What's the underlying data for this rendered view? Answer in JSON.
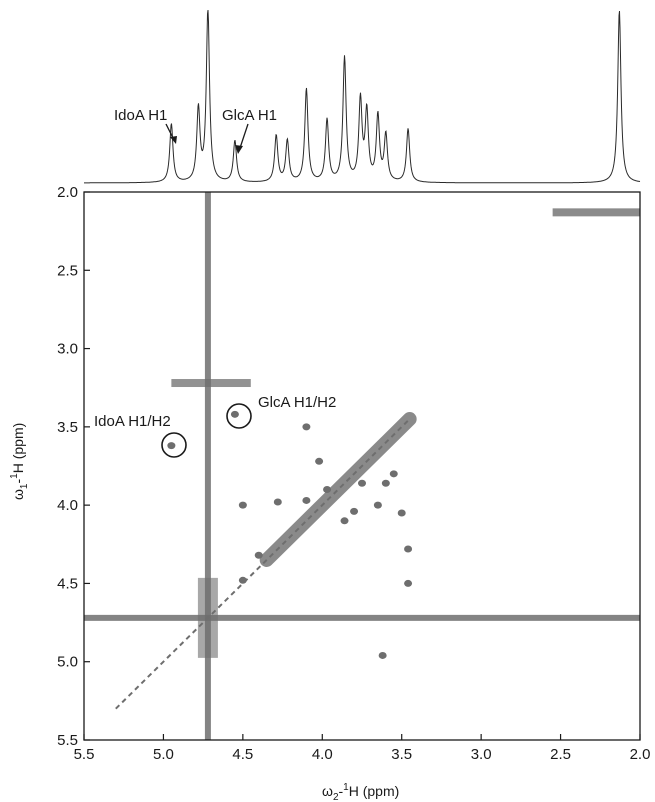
{
  "chart_data": {
    "type": "scatter",
    "title": "",
    "x_axis": {
      "label_prefix": "ω",
      "label_sub": "2",
      "label_mid": "-",
      "label_sup": "1",
      "label_suffix": "H (ppm)",
      "range": [
        5.5,
        2.0
      ],
      "ticks": [
        "5.5",
        "5.0",
        "4.5",
        "4.0",
        "3.5",
        "3.0",
        "2.5",
        "2.0"
      ]
    },
    "y_axis": {
      "label_prefix": "ω",
      "label_sub": "1",
      "label_mid": "-",
      "label_sup": "1",
      "label_suffix": "H (ppm)",
      "range": [
        2.0,
        5.5
      ],
      "ticks": [
        "2.0",
        "2.5",
        "3.0",
        "3.5",
        "4.0",
        "4.5",
        "5.0",
        "5.5"
      ]
    },
    "grid": false,
    "spectrum_1d": {
      "peaks": [
        {
          "ppm": 4.95,
          "height": 0.34
        },
        {
          "ppm": 4.78,
          "height": 0.42
        },
        {
          "ppm": 4.72,
          "height": 1.0
        },
        {
          "ppm": 4.55,
          "height": 0.24
        },
        {
          "ppm": 4.29,
          "height": 0.27
        },
        {
          "ppm": 4.22,
          "height": 0.24
        },
        {
          "ppm": 4.1,
          "height": 0.54
        },
        {
          "ppm": 3.97,
          "height": 0.36
        },
        {
          "ppm": 3.86,
          "height": 0.72
        },
        {
          "ppm": 3.76,
          "height": 0.47
        },
        {
          "ppm": 3.72,
          "height": 0.4
        },
        {
          "ppm": 3.65,
          "height": 0.38
        },
        {
          "ppm": 3.6,
          "height": 0.27
        },
        {
          "ppm": 3.46,
          "height": 0.31
        },
        {
          "ppm": 2.13,
          "height": 1.0
        }
      ]
    },
    "cross_peaks": [
      {
        "x": 4.95,
        "y": 3.62
      },
      {
        "x": 4.55,
        "y": 3.42
      },
      {
        "x": 4.5,
        "y": 4.0
      },
      {
        "x": 4.5,
        "y": 4.48
      },
      {
        "x": 4.28,
        "y": 3.98
      },
      {
        "x": 4.1,
        "y": 3.5
      },
      {
        "x": 4.02,
        "y": 3.72
      },
      {
        "x": 3.97,
        "y": 3.9
      },
      {
        "x": 3.86,
        "y": 4.1
      },
      {
        "x": 3.8,
        "y": 4.04
      },
      {
        "x": 3.75,
        "y": 3.86
      },
      {
        "x": 3.65,
        "y": 4.0
      },
      {
        "x": 3.6,
        "y": 3.86
      },
      {
        "x": 3.55,
        "y": 3.8
      },
      {
        "x": 3.5,
        "y": 4.05
      },
      {
        "x": 3.46,
        "y": 4.28
      },
      {
        "x": 3.46,
        "y": 4.5
      },
      {
        "x": 3.62,
        "y": 4.96
      },
      {
        "x": 4.4,
        "y": 4.32
      },
      {
        "x": 4.1,
        "y": 3.97
      }
    ],
    "solvent_ppm": 4.72,
    "acetate_ppm": 2.13,
    "annotations_1d": [
      {
        "text": "IdoA H1",
        "ppm": 4.95
      },
      {
        "text": "GlcA H1",
        "ppm": 4.55
      }
    ],
    "annotations_2d": [
      {
        "text": "IdoA H1/H2",
        "x": 4.95,
        "y": 3.62
      },
      {
        "text": "GlcA H1/H2",
        "x": 4.55,
        "y": 3.42
      }
    ]
  }
}
